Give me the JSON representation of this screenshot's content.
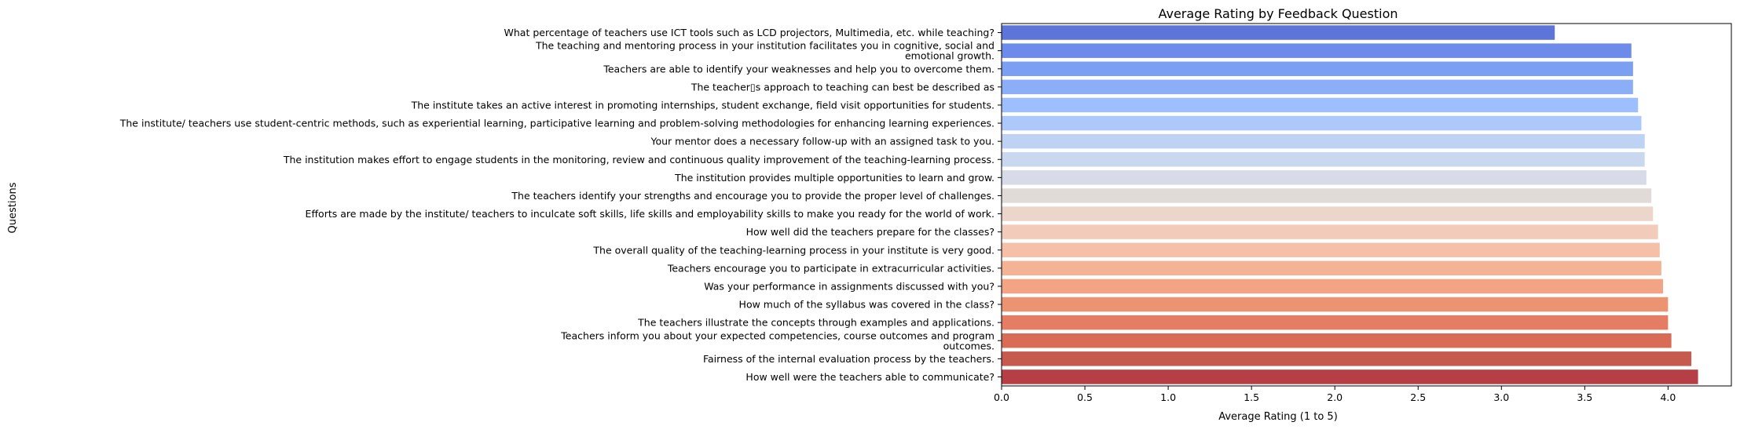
{
  "chart_data": {
    "type": "bar",
    "orientation": "horizontal",
    "title": "Average Rating by Feedback Question",
    "xlabel": "Average Rating (1 to 5)",
    "ylabel": "Questions",
    "xlim": [
      0,
      4.38
    ],
    "xticks": [
      "0.0",
      "0.5",
      "1.0",
      "1.5",
      "2.0",
      "2.5",
      "3.0",
      "3.5",
      "4.0"
    ],
    "grid": false,
    "palette": "coolwarm",
    "categories": [
      [
        "What percentage of teachers use ICT tools such as LCD projectors, Multimedia, etc. while teaching?"
      ],
      [
        "The teaching and mentoring process in your institution facilitates you in cognitive, social and",
        "emotional growth."
      ],
      [
        "Teachers are able to identify your weaknesses and help you to overcome them."
      ],
      [
        "The teacher▯s approach to teaching can best be described as"
      ],
      [
        "The institute takes an active interest in promoting internships, student exchange, field visit opportunities for students."
      ],
      [
        "The institute/ teachers use student-centric methods, such as experiential learning, participative learning and problem-solving methodologies for enhancing learning experiences."
      ],
      [
        "Your mentor does a necessary follow-up with an assigned task to you."
      ],
      [
        "The institution makes effort to engage students in the monitoring, review and continuous quality improvement of the teaching-learning process."
      ],
      [
        "The institution provides multiple opportunities to learn and grow."
      ],
      [
        "The teachers identify your strengths and encourage you to provide the proper level of challenges."
      ],
      [
        "Efforts are made by the institute/ teachers to inculcate soft skills, life skills and employability skills to make you ready for the world of work."
      ],
      [
        "How well did the teachers prepare for the classes?"
      ],
      [
        "The overall quality of the teaching-learning process in your institute is very good."
      ],
      [
        "Teachers encourage you to participate in extracurricular activities."
      ],
      [
        "Was your performance in assignments discussed with you?"
      ],
      [
        "How much of the syllabus was covered in the class?"
      ],
      [
        "The teachers illustrate the concepts through examples and applications."
      ],
      [
        "Teachers inform you about your expected competencies, course outcomes and program",
        "outcomes."
      ],
      [
        "Fairness of the internal evaluation process by the teachers."
      ],
      [
        "How well were the teachers able to communicate?"
      ]
    ],
    "values": [
      3.32,
      3.78,
      3.79,
      3.79,
      3.82,
      3.84,
      3.86,
      3.86,
      3.87,
      3.9,
      3.91,
      3.94,
      3.95,
      3.96,
      3.97,
      4.0,
      4.0,
      4.02,
      4.14,
      4.18
    ],
    "colors": [
      "#5d74d8",
      "#6c8bea",
      "#7b9ff2",
      "#8caef7",
      "#9ebfff",
      "#adc9fb",
      "#bed3f4",
      "#cad8ef",
      "#d6dbe7",
      "#e1dbd7",
      "#ecd6cc",
      "#f2cbbb",
      "#f6bfa7",
      "#f5b396",
      "#f2a485",
      "#ec9472",
      "#e47d63",
      "#d86c56",
      "#c75a4f",
      "#b63e45"
    ]
  }
}
